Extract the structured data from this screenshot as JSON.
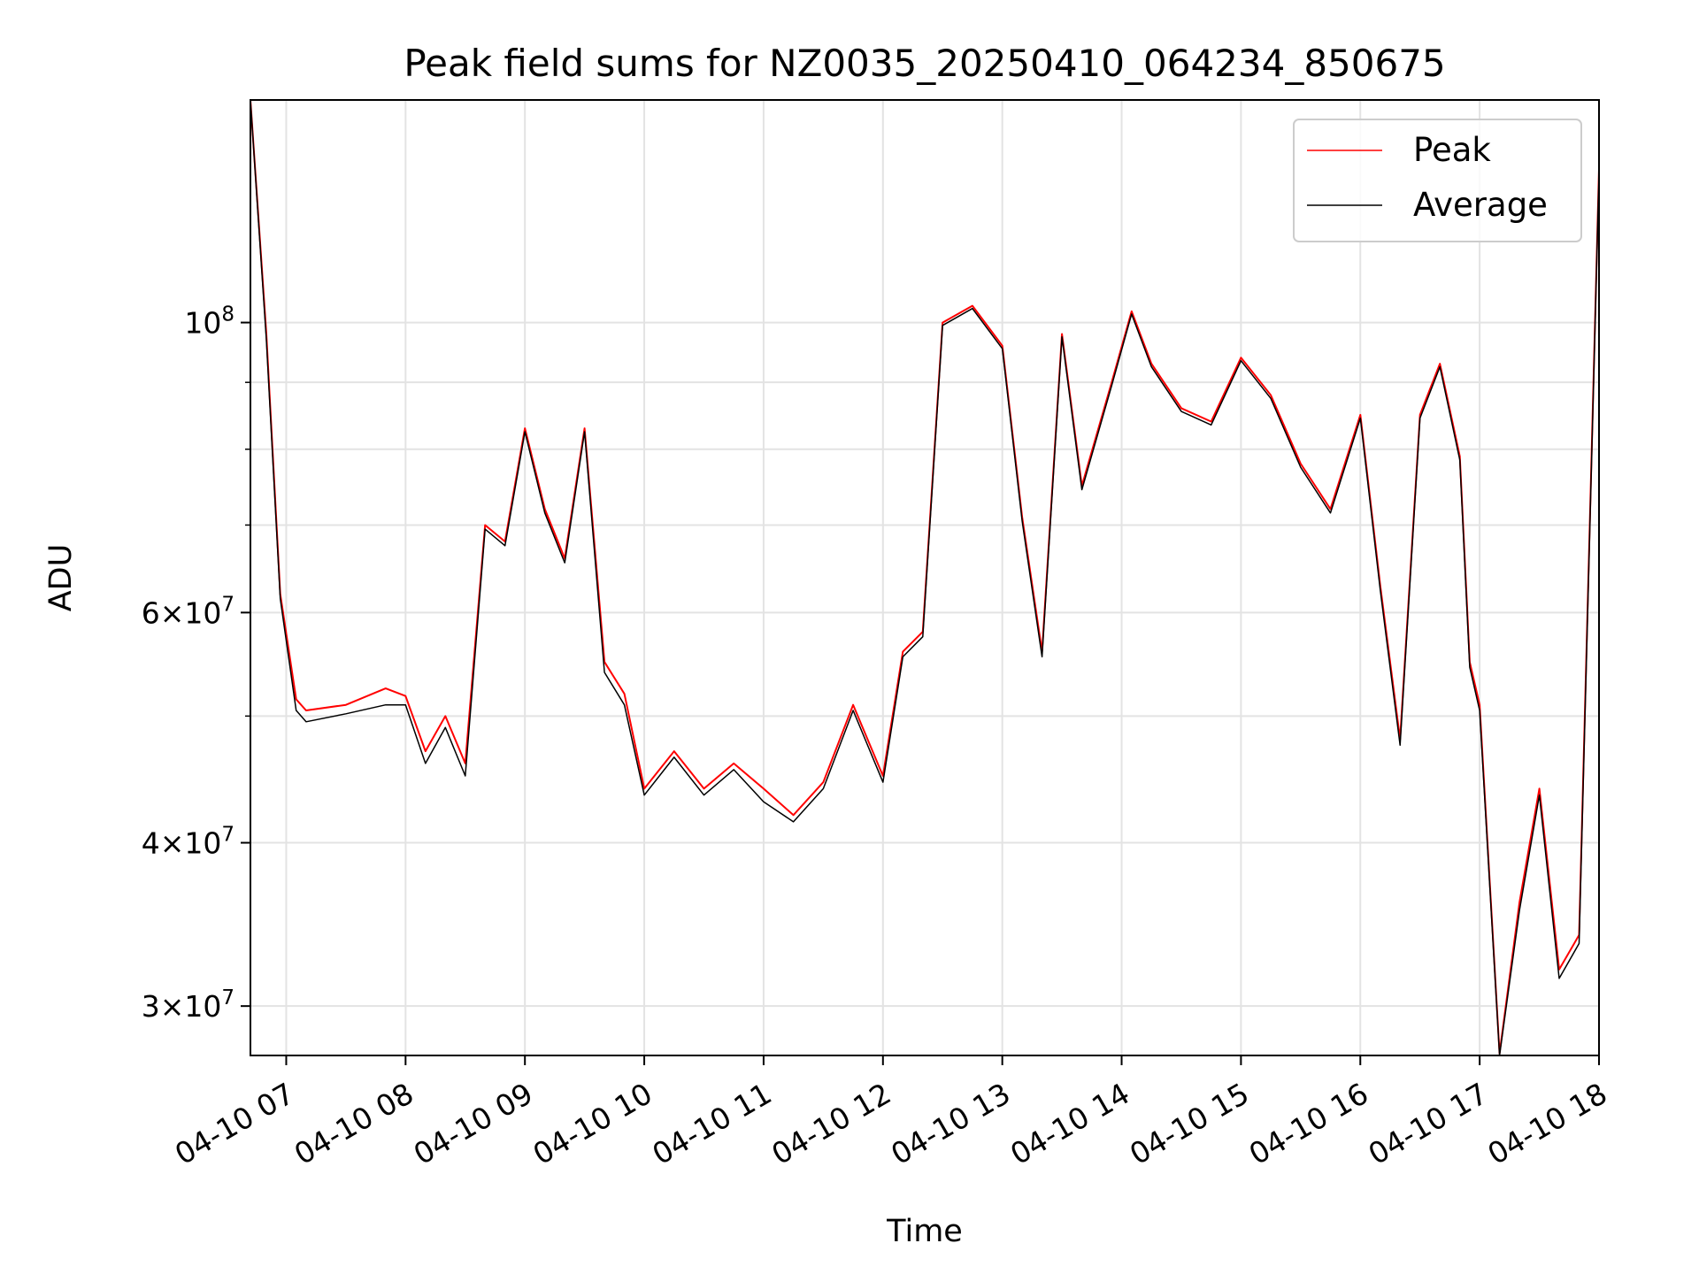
{
  "chart_data": {
    "type": "line",
    "title": "Peak field sums for NZ0035_20250410_064234_850675",
    "xlabel": "Time",
    "ylabel": "ADU",
    "yscale": "log",
    "ylim": [
      27500000,
      148000000
    ],
    "xlim": [
      "04-10 06:42",
      "04-10 18:00"
    ],
    "grid": true,
    "legend_position": "upper right",
    "x_ticks": [
      "04-10 07",
      "04-10 08",
      "04-10 09",
      "04-10 10",
      "04-10 11",
      "04-10 12",
      "04-10 13",
      "04-10 14",
      "04-10 15",
      "04-10 16",
      "04-10 17",
      "04-10 18"
    ],
    "y_tick_labels": [
      {
        "value": 100000000,
        "mantissa": "",
        "exponent": "8",
        "base": "10"
      },
      {
        "value": 60000000,
        "mantissa": "6",
        "exponent": "7",
        "base": "10"
      },
      {
        "value": 40000000,
        "mantissa": "4",
        "exponent": "7",
        "base": "10"
      },
      {
        "value": 30000000,
        "mantissa": "3",
        "exponent": "7",
        "base": "10"
      }
    ],
    "y_minor_ticks": [
      50000000,
      70000000,
      80000000,
      90000000
    ],
    "time_axis": [
      "04-10 06:42",
      "04-10 06:50",
      "04-10 06:57",
      "04-10 07:05",
      "04-10 07:10",
      "04-10 07:30",
      "04-10 07:50",
      "04-10 08:00",
      "04-10 08:10",
      "04-10 08:20",
      "04-10 08:30",
      "04-10 08:40",
      "04-10 08:50",
      "04-10 09:00",
      "04-10 09:10",
      "04-10 09:20",
      "04-10 09:30",
      "04-10 09:40",
      "04-10 09:50",
      "04-10 10:00",
      "04-10 10:15",
      "04-10 10:30",
      "04-10 10:45",
      "04-10 11:00",
      "04-10 11:15",
      "04-10 11:30",
      "04-10 11:45",
      "04-10 12:00",
      "04-10 12:10",
      "04-10 12:20",
      "04-10 12:30",
      "04-10 12:45",
      "04-10 13:00",
      "04-10 13:10",
      "04-10 13:20",
      "04-10 13:30",
      "04-10 13:40",
      "04-10 13:55",
      "04-10 14:05",
      "04-10 14:15",
      "04-10 14:30",
      "04-10 14:45",
      "04-10 15:00",
      "04-10 15:15",
      "04-10 15:30",
      "04-10 15:45",
      "04-10 16:00",
      "04-10 16:10",
      "04-10 16:20",
      "04-10 16:30",
      "04-10 16:40",
      "04-10 16:50",
      "04-10 16:55",
      "04-10 17:00",
      "04-10 17:10",
      "04-10 17:20",
      "04-10 17:30",
      "04-10 17:40",
      "04-10 17:50",
      "04-10 18:00"
    ],
    "series": [
      {
        "name": "Peak",
        "color": "#ff0000",
        "values": [
          148000000,
          98000000,
          62000000,
          51500000,
          50500000,
          51000000,
          52500000,
          51800000,
          47000000,
          50000000,
          46000000,
          70000000,
          68000000,
          83000000,
          72000000,
          66000000,
          83000000,
          55000000,
          52000000,
          44000000,
          47000000,
          44000000,
          46000000,
          44000000,
          42000000,
          44500000,
          51000000,
          45000000,
          56000000,
          58000000,
          100000000,
          103000000,
          96000000,
          71000000,
          56000000,
          98000000,
          75000000,
          90000000,
          102000000,
          93000000,
          86000000,
          84000000,
          94000000,
          88000000,
          78000000,
          72000000,
          85000000,
          63000000,
          48000000,
          85000000,
          93000000,
          79000000,
          55000000,
          51000000,
          27600000,
          36000000,
          44000000,
          32000000,
          34000000,
          131000000
        ]
      },
      {
        "name": "Average",
        "color": "#000000",
        "values": [
          148000000,
          97000000,
          61500000,
          50500000,
          49500000,
          50200000,
          51000000,
          51000000,
          46000000,
          49000000,
          45000000,
          69500000,
          67500000,
          82500000,
          71500000,
          65500000,
          82500000,
          54000000,
          51000000,
          43500000,
          46500000,
          43500000,
          45500000,
          43000000,
          41500000,
          44000000,
          50500000,
          44500000,
          55500000,
          57500000,
          99500000,
          102500000,
          95500000,
          70500000,
          55500000,
          97500000,
          74500000,
          89500000,
          101500000,
          92500000,
          85500000,
          83500000,
          93500000,
          87500000,
          77500000,
          71500000,
          84500000,
          62500000,
          47500000,
          84500000,
          92500000,
          78500000,
          54500000,
          50500000,
          27500000,
          35500000,
          43500000,
          31500000,
          33500000,
          130000000
        ]
      }
    ]
  }
}
